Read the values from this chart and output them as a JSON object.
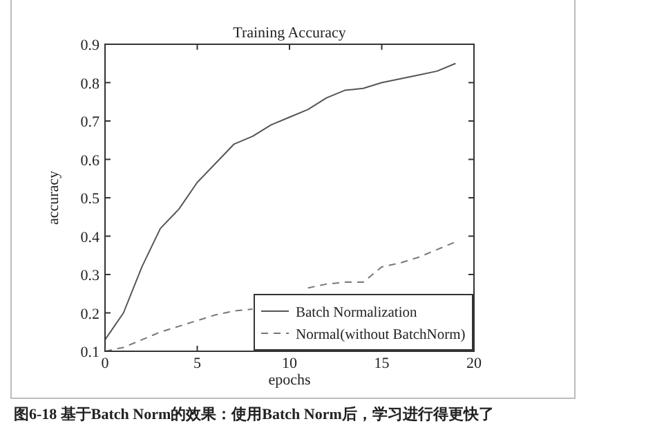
{
  "chart_data": {
    "type": "line",
    "title": "Training Accuracy",
    "xlabel": "epochs",
    "ylabel": "accuracy",
    "x": [
      0,
      1,
      2,
      3,
      4,
      5,
      6,
      7,
      8,
      9,
      10,
      11,
      12,
      13,
      14,
      15,
      16,
      17,
      18,
      19
    ],
    "series": [
      {
        "name": "Batch Normalization",
        "color": "#555555",
        "line_style": "solid",
        "values": [
          0.13,
          0.2,
          0.32,
          0.42,
          0.47,
          0.54,
          0.59,
          0.64,
          0.66,
          0.69,
          0.71,
          0.73,
          0.76,
          0.78,
          0.785,
          0.8,
          0.81,
          0.82,
          0.83,
          0.85
        ]
      },
      {
        "name": "Normal(without BatchNorm)",
        "color": "#777777",
        "line_style": "dashed",
        "values": [
          0.1,
          0.11,
          0.13,
          0.15,
          0.165,
          0.18,
          0.195,
          0.205,
          0.21,
          null,
          null,
          0.265,
          0.275,
          0.28,
          0.28,
          0.32,
          0.33,
          0.345,
          0.365,
          0.385
        ]
      }
    ],
    "xlim": [
      0,
      20
    ],
    "ylim": [
      0.1,
      0.9
    ],
    "xticks": [
      0,
      5,
      10,
      15,
      20
    ],
    "yticks": [
      0.1,
      0.2,
      0.3,
      0.4,
      0.5,
      0.6,
      0.7,
      0.8,
      0.9
    ],
    "legend": "bottom right",
    "grid": false,
    "annotations": [
      "图6-18  基于Batch Norm的效果：使用Batch Norm后，学习进行得更快了"
    ]
  }
}
